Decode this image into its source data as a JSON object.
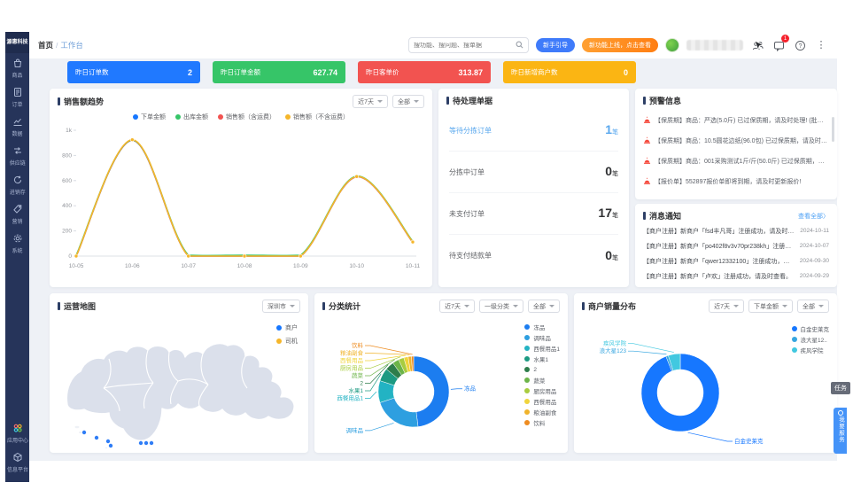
{
  "sidebar": {
    "logo": "源惠科技",
    "items": [
      {
        "label": "商品"
      },
      {
        "label": "订单"
      },
      {
        "label": "数据"
      },
      {
        "label": "供应链"
      },
      {
        "label": "进销存"
      },
      {
        "label": "营销"
      },
      {
        "label": "系统"
      }
    ],
    "bottom_items": [
      {
        "label": "应用中心"
      },
      {
        "label": "信息平台"
      }
    ]
  },
  "header": {
    "breadcrumb_home": "首页",
    "breadcrumb_sep": "/",
    "breadcrumb_current": "工作台",
    "search_placeholder": "搜功能、搜问题、搜单据",
    "guide_button": "新手引导",
    "promo_button": "新功能上线，点击查看",
    "message_badge": "1"
  },
  "stat_cards": [
    {
      "label": "昨日订单数",
      "value": "2",
      "color": "#2079ff"
    },
    {
      "label": "昨日订单金额",
      "value": "627.74",
      "color": "#36c568"
    },
    {
      "label": "昨日客单价",
      "value": "313.87",
      "color": "#f25350"
    },
    {
      "label": "昨日新增商户数",
      "value": "0",
      "color": "#fbb513"
    }
  ],
  "sales_panel": {
    "title": "销售额趋势",
    "range": "近7天",
    "scope": "全部"
  },
  "pending_panel": {
    "title": "待处理单据",
    "rows": [
      {
        "label": "等待分拣订单",
        "value": "1",
        "unit": "笔"
      },
      {
        "label": "分拣中订单",
        "value": "0",
        "unit": "笔"
      },
      {
        "label": "未支付订单",
        "value": "17",
        "unit": "笔"
      },
      {
        "label": "待支付结款单",
        "value": "0",
        "unit": "笔"
      }
    ]
  },
  "alerts_panel": {
    "title": "预警信息",
    "items": [
      {
        "text": "【保质期】商品：严选(5.0斤) 已过保质期，请及时处理! (批次号：T10..."
      },
      {
        "text": "【保质期】商品：10.5圆花边纸(96.0包) 已过保质期，请及时处理 (批..."
      },
      {
        "text": "【保质期】商品：001采购测试1斤/斤(50.0斤) 已过保质期，请及时处..."
      },
      {
        "text": "【报价单】552897报价单即将到期，请及时更新报价!"
      }
    ]
  },
  "notice_panel": {
    "title": "消息通知",
    "view_all": "查看全部〉",
    "items": [
      {
        "text": "【商户注册】新商户「fsd丰凡哥」注册成功，请及时查看。",
        "date": "2024-10-11"
      },
      {
        "text": "【商户注册】新商户「po402f8v3v70pr238kh」注册成功，请..",
        "date": "2024-10-07"
      },
      {
        "text": "【商户注册】新商户「qwer12332100」注册成功，请及时查..",
        "date": "2024-09-30"
      },
      {
        "text": "【商户注册】新商户「卢欢」注册成功，请及时查看。",
        "date": "2024-09-29"
      }
    ]
  },
  "map_panel": {
    "title": "运营地图",
    "city": "深圳市",
    "legend": [
      {
        "label": "商户",
        "color": "#1677ff"
      },
      {
        "label": "司机",
        "color": "#f5b62a"
      }
    ]
  },
  "category_panel": {
    "title": "分类统计",
    "filters": [
      "近7天",
      "一级分类",
      "全部"
    ]
  },
  "merchant_panel": {
    "title": "商户销量分布",
    "filters": [
      "近7天",
      "下单金额",
      "全部"
    ]
  },
  "floating": {
    "task": "任务",
    "service": "我要服务"
  },
  "chart_data": [
    {
      "type": "line",
      "title": "销售额趋势",
      "x": [
        "10-05",
        "10-06",
        "10-07",
        "10-08",
        "10-09",
        "10-10",
        "10-11"
      ],
      "ylim": [
        0,
        1000
      ],
      "yticks": [
        {
          "v": 1000,
          "label": "1k"
        },
        {
          "v": 800,
          "label": "800"
        },
        {
          "v": 600,
          "label": "600"
        },
        {
          "v": 400,
          "label": "400"
        },
        {
          "v": 200,
          "label": "200"
        },
        {
          "v": 0,
          "label": "0"
        }
      ],
      "series": [
        {
          "name": "下单金额",
          "color": "#1677ff",
          "values": [
            0,
            920,
            0,
            0,
            0,
            630,
            110
          ]
        },
        {
          "name": "出库金额",
          "color": "#36c568",
          "values": [
            0,
            915,
            0,
            0,
            0,
            628,
            110
          ]
        },
        {
          "name": "销售额（含运费）",
          "color": "#f25350",
          "values": [
            0,
            920,
            0,
            0,
            0,
            630,
            110
          ]
        },
        {
          "name": "销售额（不含运费）",
          "color": "#f5b62a",
          "values": [
            0,
            925,
            0,
            0,
            0,
            632,
            112
          ]
        }
      ],
      "grid": false,
      "legend_position": "top"
    },
    {
      "type": "pie",
      "title": "分类统计",
      "donut": true,
      "categories": [
        "冻品",
        "调味品",
        "西餐用品1",
        "水果1",
        "2",
        "蔬菜",
        "厨房用品",
        "西餐用品",
        "粮油副食",
        "饮料"
      ],
      "values": [
        48,
        22,
        10,
        6,
        4,
        3,
        2.5,
        2,
        1.5,
        1
      ],
      "colors": [
        "#1c7df0",
        "#2e9fe0",
        "#23b3c3",
        "#1c9a82",
        "#2e7d4b",
        "#6cb449",
        "#a8cc3f",
        "#f0d43c",
        "#f0b32b",
        "#ee8c20"
      ],
      "legend_position": "right"
    },
    {
      "type": "pie",
      "title": "商户销量分布",
      "donut": true,
      "categories": [
        "白金史莱克",
        "浪大星123",
        "疾风学院"
      ],
      "legend_labels": [
        "白金史莱克",
        "浪大星12..",
        "疾风学院"
      ],
      "values": [
        94,
        1,
        5
      ],
      "colors": [
        "#1677ff",
        "#36a6e0",
        "#41c8e0"
      ],
      "legend_position": "right"
    }
  ]
}
